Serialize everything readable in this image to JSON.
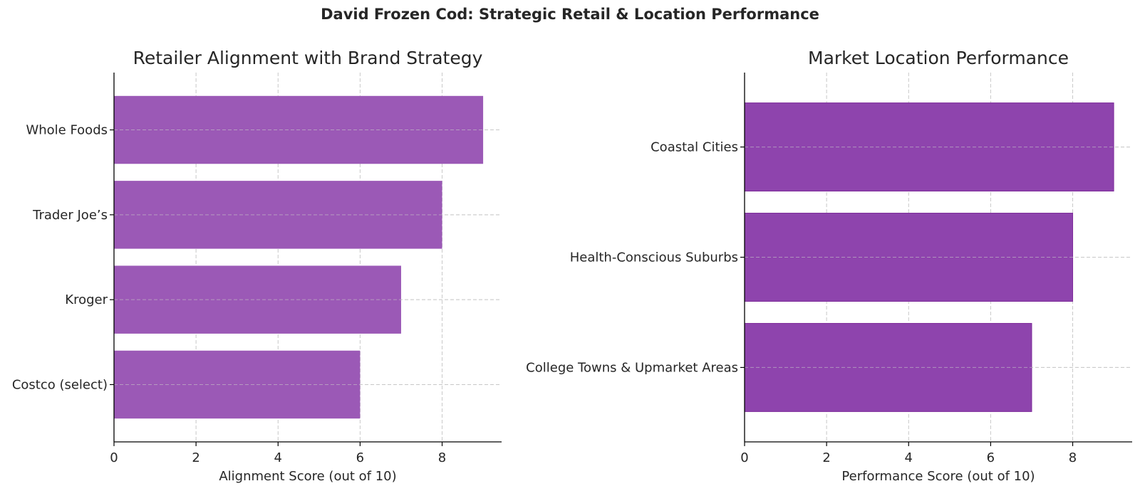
{
  "suptitle": "David Frozen Cod: Strategic Retail & Location Performance",
  "chart_data": [
    {
      "type": "bar",
      "orientation": "horizontal",
      "title": "Retailer Alignment with Brand Strategy",
      "xlabel": "Alignment Score (out of 10)",
      "ylabel": "",
      "categories": [
        "Whole Foods",
        "Trader Joe’s",
        "Kroger",
        "Costco (select)"
      ],
      "values": [
        9,
        8,
        7,
        6
      ],
      "xlim": [
        0,
        9.45
      ],
      "xticks": [
        0,
        2,
        4,
        6,
        8
      ],
      "grid": true,
      "bar_color": "#9b59b6"
    },
    {
      "type": "bar",
      "orientation": "horizontal",
      "title": "Market Location Performance",
      "xlabel": "Performance Score (out of 10)",
      "ylabel": "",
      "categories": [
        "Coastal Cities",
        "Health-Conscious Suburbs",
        "College Towns & Upmarket Areas"
      ],
      "values": [
        9,
        8,
        7
      ],
      "xlim": [
        0,
        9.45
      ],
      "xticks": [
        0,
        2,
        4,
        6,
        8
      ],
      "grid": true,
      "bar_color": "#8e44ad"
    }
  ]
}
